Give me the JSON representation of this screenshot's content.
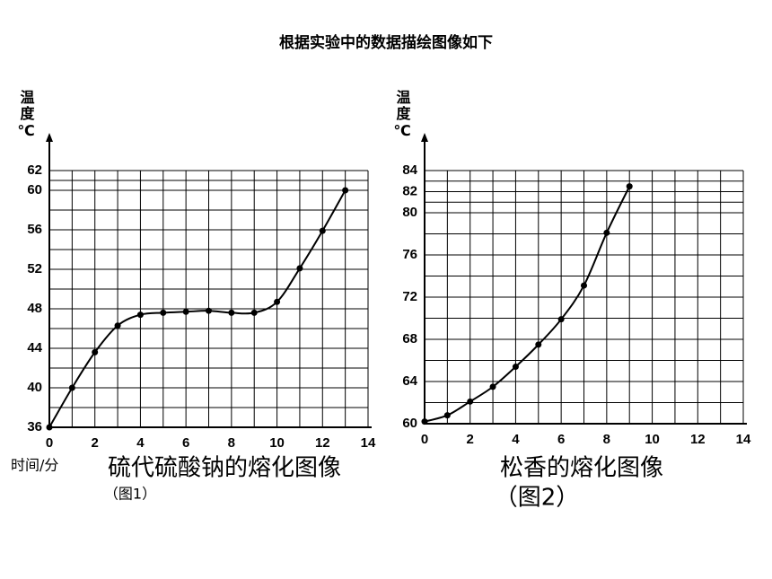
{
  "page_title": "根据实验中的数据描绘图像如下",
  "chart_data": [
    {
      "type": "line",
      "title": "硫代硫酸钠的熔化图像",
      "subtitle": "（图1）",
      "y_label": "温度℃",
      "x_label": "时间/分",
      "x": [
        0,
        1,
        2,
        3,
        4,
        5,
        6,
        7,
        8,
        9,
        10,
        11,
        12,
        13
      ],
      "values": [
        36,
        40,
        43.6,
        46.3,
        47.4,
        47.6,
        47.7,
        47.8,
        47.6,
        47.6,
        48.7,
        52.1,
        55.9,
        60
      ],
      "color": "#000000",
      "xlim": [
        0,
        14
      ],
      "xticks": [
        0,
        2,
        4,
        6,
        8,
        10,
        12,
        14
      ],
      "ylim": [
        36,
        62
      ],
      "yticks": [
        36,
        40,
        44,
        48,
        52,
        56,
        60,
        62
      ],
      "grid": true
    },
    {
      "type": "line",
      "title": "松香的熔化图像",
      "subtitle": "（图2）",
      "y_label": "温度℃",
      "x": [
        0,
        1,
        2,
        3,
        4,
        5,
        6,
        7,
        8,
        9
      ],
      "values": [
        60.2,
        60.8,
        62.1,
        63.5,
        65.4,
        67.5,
        69.9,
        73.1,
        78.1,
        82.5
      ],
      "color": "#000000",
      "xlim": [
        0,
        14
      ],
      "xticks": [
        0,
        2,
        4,
        6,
        8,
        10,
        12,
        14
      ],
      "ylim": [
        60,
        84
      ],
      "yticks": [
        60,
        64,
        68,
        72,
        76,
        80,
        82,
        84
      ],
      "grid": true
    }
  ]
}
